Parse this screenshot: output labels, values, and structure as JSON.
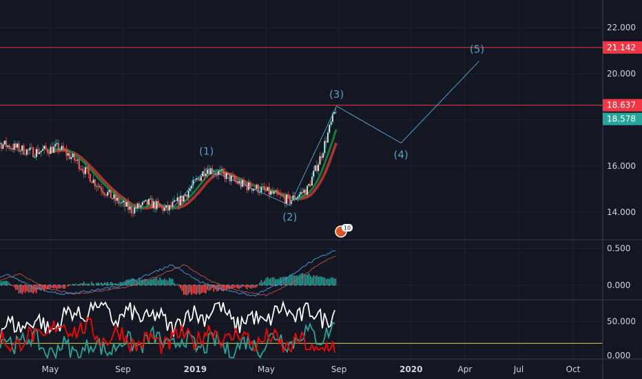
{
  "chart_data": [
    {
      "type": "candlestick",
      "panel": "price",
      "ylim": [
        12.8,
        23.2
      ],
      "y_ticks": [
        "22.000",
        "20.000",
        "18.000",
        "16.000",
        "14.000"
      ],
      "horizontal_lines": [
        {
          "value": 21.142,
          "label": "21.142",
          "color": "#f23645"
        },
        {
          "value": 18.637,
          "label": "18.637",
          "color": "#f23645"
        }
      ],
      "last_price": {
        "value": 18.578,
        "label": "18.578",
        "color": "#26a69a"
      },
      "wave_points": [
        {
          "x": "2019-01-20",
          "y": 15.9,
          "label": "(1)"
        },
        {
          "x": "2019-06-10",
          "y": 14.3,
          "label": "(2)"
        },
        {
          "x": "2019-08-28",
          "y": 18.6,
          "label": "(3)"
        },
        {
          "x": "2019-12-15",
          "y": 17.0,
          "label": "(4)"
        },
        {
          "x": "2020-04-25",
          "y": 20.55,
          "label": "(5)"
        }
      ],
      "close_approx": [
        {
          "x": "2018-01-01",
          "y": 17.2
        },
        {
          "x": "2018-02-15",
          "y": 16.9
        },
        {
          "x": "2018-04-01",
          "y": 16.6
        },
        {
          "x": "2018-05-15",
          "y": 16.8
        },
        {
          "x": "2018-06-15",
          "y": 16.2
        },
        {
          "x": "2018-07-15",
          "y": 15.3
        },
        {
          "x": "2018-08-15",
          "y": 14.6
        },
        {
          "x": "2018-09-15",
          "y": 14.1
        },
        {
          "x": "2018-10-15",
          "y": 14.4
        },
        {
          "x": "2018-11-15",
          "y": 14.1
        },
        {
          "x": "2018-12-10",
          "y": 14.6
        },
        {
          "x": "2019-01-20",
          "y": 15.9
        },
        {
          "x": "2019-02-20",
          "y": 15.6
        },
        {
          "x": "2019-03-20",
          "y": 15.2
        },
        {
          "x": "2019-04-20",
          "y": 15.0
        },
        {
          "x": "2019-06-10",
          "y": 14.5
        },
        {
          "x": "2019-07-10",
          "y": 15.0
        },
        {
          "x": "2019-08-01",
          "y": 16.4
        },
        {
          "x": "2019-08-28",
          "y": 18.58
        }
      ],
      "alert_badge": "10"
    },
    {
      "type": "line",
      "panel": "oscillator",
      "ylim": [
        -0.2,
        0.62
      ],
      "y_ticks": [
        "0.500",
        "0.000"
      ],
      "series": [
        {
          "values_approx": [
            0.03,
            0.15,
            -0.04,
            -0.12,
            -0.08,
            -0.02,
            0.12,
            0.28,
            0.05,
            -0.08,
            -0.14,
            0.04,
            0.31,
            0.48
          ]
        }
      ]
    },
    {
      "type": "line",
      "panel": "directional",
      "ylim": [
        -5,
        82
      ],
      "y_ticks": [
        "50.000",
        "0.000"
      ],
      "reference_line": 18,
      "series": [
        {
          "color": "#ffffff",
          "values_approx": [
            35,
            50,
            42,
            60,
            72,
            55,
            62,
            45,
            58,
            70,
            48,
            55,
            65,
            58,
            62
          ]
        },
        {
          "color": "#26a69a",
          "values_approx": [
            18,
            25,
            10,
            8,
            12,
            15,
            22,
            20,
            18,
            15,
            12,
            20,
            25,
            30,
            38
          ]
        },
        {
          "color": "#ff0000",
          "values_approx": [
            22,
            20,
            35,
            45,
            30,
            28,
            18,
            22,
            28,
            32,
            26,
            22,
            18,
            12,
            8
          ]
        }
      ]
    }
  ],
  "x_axis": {
    "ticks": [
      {
        "x": "2018-05-01",
        "label": "May"
      },
      {
        "x": "2018-09-01",
        "label": "Sep"
      },
      {
        "x": "2019-01-01",
        "label": "2019"
      },
      {
        "x": "2019-05-01",
        "label": "May"
      },
      {
        "x": "2019-09-01",
        "label": "Sep"
      },
      {
        "x": "2020-01-01",
        "label": "2020"
      },
      {
        "x": "2020-04-01",
        "label": "Apr"
      },
      {
        "x": "2020-07-01",
        "label": "Jul"
      },
      {
        "x": "2020-10-01",
        "label": "Oct"
      }
    ]
  },
  "colors": {
    "background": "#131722",
    "grid": "#1e222d",
    "up": "#26a69a",
    "down": "#ef5350",
    "ma_green": "#1b7a3a",
    "ma_red": "#a83232",
    "wave": "#5b9cc4",
    "text": "#d1d4dc",
    "reference": "#e6d84e"
  }
}
